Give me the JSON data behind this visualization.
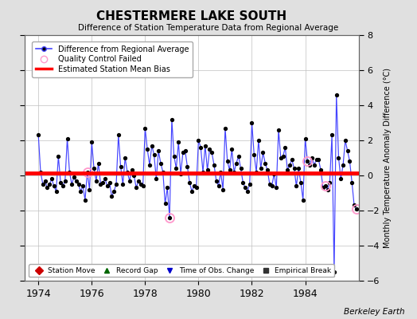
{
  "title": "CHESTERMERE LAKE SOUTH",
  "subtitle": "Difference of Station Temperature Data from Regional Average",
  "ylabel_right": "Monthly Temperature Anomaly Difference (°C)",
  "xlim": [
    1973.5,
    1986.0
  ],
  "ylim": [
    -6,
    8
  ],
  "yticks": [
    -6,
    -4,
    -2,
    0,
    2,
    4,
    6,
    8
  ],
  "xticks": [
    1974,
    1976,
    1978,
    1980,
    1982,
    1984
  ],
  "bias_level": 0.15,
  "bias_color": "#ff0000",
  "line_color": "#4444ff",
  "marker_color": "#000000",
  "qc_color": "#ff99cc",
  "background_color": "#e0e0e0",
  "plot_bg_color": "#ffffff",
  "berkeley_earth_text": "Berkeley Earth",
  "x_data": [
    1974.0,
    1974.083,
    1974.167,
    1974.25,
    1974.333,
    1974.417,
    1974.5,
    1974.583,
    1974.667,
    1974.75,
    1974.833,
    1974.917,
    1975.0,
    1975.083,
    1975.167,
    1975.25,
    1975.333,
    1975.417,
    1975.5,
    1975.583,
    1975.667,
    1975.75,
    1975.833,
    1975.917,
    1976.0,
    1976.083,
    1976.167,
    1976.25,
    1976.333,
    1976.417,
    1976.5,
    1976.583,
    1976.667,
    1976.75,
    1976.833,
    1976.917,
    1977.0,
    1977.083,
    1977.167,
    1977.25,
    1977.333,
    1977.417,
    1977.5,
    1977.583,
    1977.667,
    1977.75,
    1977.833,
    1977.917,
    1978.0,
    1978.083,
    1978.167,
    1978.25,
    1978.333,
    1978.417,
    1978.5,
    1978.583,
    1978.667,
    1978.75,
    1978.833,
    1978.917,
    1979.0,
    1979.083,
    1979.167,
    1979.25,
    1979.333,
    1979.417,
    1979.5,
    1979.583,
    1979.667,
    1979.75,
    1979.833,
    1979.917,
    1980.0,
    1980.083,
    1980.167,
    1980.25,
    1980.333,
    1980.417,
    1980.5,
    1980.583,
    1980.667,
    1980.75,
    1980.833,
    1980.917,
    1981.0,
    1981.083,
    1981.167,
    1981.25,
    1981.333,
    1981.417,
    1981.5,
    1981.583,
    1981.667,
    1981.75,
    1981.833,
    1981.917,
    1982.0,
    1982.083,
    1982.167,
    1982.25,
    1982.333,
    1982.417,
    1982.5,
    1982.583,
    1982.667,
    1982.75,
    1982.833,
    1982.917,
    1983.0,
    1983.083,
    1983.167,
    1983.25,
    1983.333,
    1983.417,
    1983.5,
    1983.583,
    1983.667,
    1983.75,
    1983.833,
    1983.917,
    1984.0,
    1984.083,
    1984.167,
    1984.25,
    1984.333,
    1984.417,
    1984.5,
    1984.583,
    1984.667,
    1984.75,
    1984.833,
    1984.917,
    1985.0,
    1985.083,
    1985.167,
    1985.25,
    1985.333,
    1985.417,
    1985.5,
    1985.583,
    1985.667,
    1985.75,
    1985.833,
    1985.917
  ],
  "y_data": [
    2.3,
    0.2,
    -0.5,
    -0.3,
    -0.7,
    -0.5,
    -0.2,
    -0.6,
    -0.9,
    1.1,
    -0.4,
    -0.6,
    -0.3,
    2.1,
    0.2,
    -0.5,
    -0.1,
    -0.3,
    -0.5,
    -0.9,
    -0.6,
    -1.4,
    0.2,
    -0.8,
    1.9,
    0.4,
    -0.3,
    0.7,
    -0.5,
    -0.4,
    -0.2,
    -0.6,
    -0.4,
    -1.2,
    -0.9,
    -0.5,
    2.3,
    0.5,
    -0.5,
    1.0,
    0.2,
    -0.3,
    0.3,
    0.0,
    -0.7,
    -0.3,
    -0.5,
    -0.6,
    2.7,
    1.5,
    0.6,
    1.7,
    1.2,
    -0.2,
    1.4,
    0.7,
    0.2,
    -1.6,
    -0.7,
    -2.4,
    3.2,
    1.1,
    0.4,
    1.9,
    0.1,
    1.3,
    1.4,
    0.5,
    -0.4,
    -0.9,
    -0.6,
    -0.7,
    2.0,
    1.6,
    0.2,
    1.7,
    0.3,
    1.5,
    1.3,
    0.6,
    -0.3,
    -0.6,
    0.2,
    -0.8,
    2.7,
    0.8,
    0.3,
    1.5,
    0.2,
    0.7,
    1.1,
    0.4,
    -0.4,
    -0.7,
    -0.9,
    -0.5,
    3.0,
    1.2,
    0.2,
    2.0,
    0.4,
    1.3,
    0.7,
    0.3,
    -0.5,
    -0.6,
    0.1,
    -0.7,
    2.6,
    1.0,
    1.1,
    1.6,
    0.3,
    0.6,
    0.9,
    0.4,
    -0.6,
    0.4,
    -0.4,
    -1.4,
    2.1,
    0.8,
    0.6,
    1.0,
    0.6,
    0.9,
    0.9,
    0.3,
    -0.7,
    -0.6,
    -0.8,
    -0.4,
    2.3,
    -5.5,
    4.6,
    1.0,
    -0.2,
    0.6,
    2.0,
    1.4,
    0.8,
    -0.4,
    -1.7,
    -1.9
  ],
  "qc_failed_indices": [
    22,
    59,
    121,
    129,
    143
  ],
  "legend_top": [
    {
      "label": "Difference from Regional Average",
      "type": "line_marker"
    },
    {
      "label": "Quality Control Failed",
      "type": "qc_circle"
    },
    {
      "label": "Estimated Station Mean Bias",
      "type": "red_line"
    }
  ],
  "legend_bottom": [
    {
      "label": "Station Move",
      "marker": "D",
      "color": "#cc0000"
    },
    {
      "label": "Record Gap",
      "marker": "^",
      "color": "#006600"
    },
    {
      "label": "Time of Obs. Change",
      "marker": "v",
      "color": "#0000cc"
    },
    {
      "label": "Empirical Break",
      "marker": "s",
      "color": "#333333"
    }
  ]
}
